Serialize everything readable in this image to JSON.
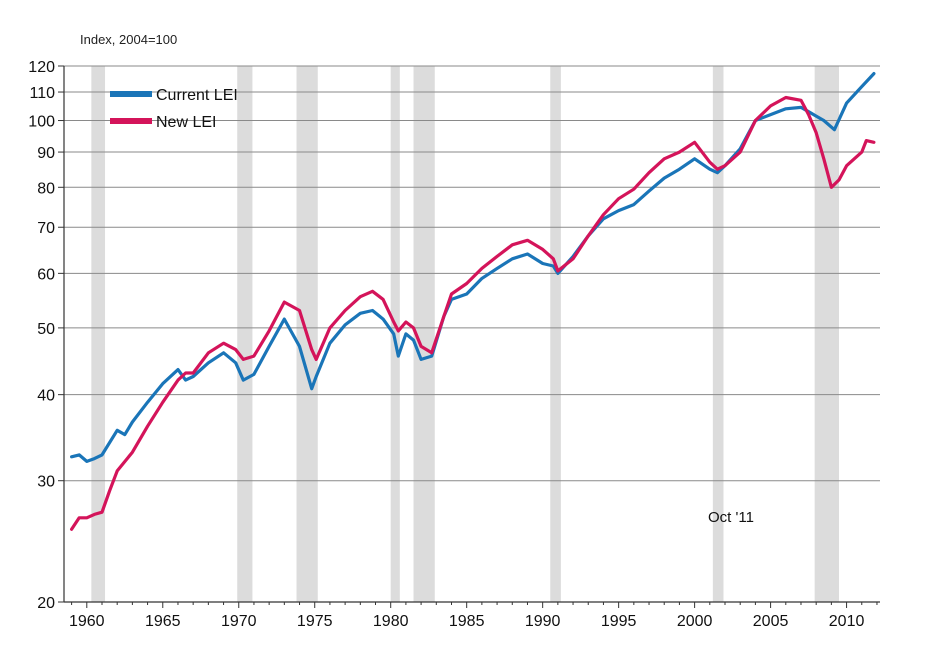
{
  "chart_data": {
    "type": "line",
    "ylabel": "Index, 2004=100",
    "y_scale": "log",
    "ylim": [
      20,
      120
    ],
    "xlim": [
      1958.5,
      2012.2
    ],
    "y_ticks": [
      20,
      30,
      40,
      50,
      60,
      70,
      80,
      90,
      100,
      110,
      120
    ],
    "x_ticks": [
      1960,
      1965,
      1970,
      1975,
      1980,
      1985,
      1990,
      1995,
      2000,
      2005,
      2010
    ],
    "grid": "horizontal",
    "legend_position": "top-left",
    "annotation": "Oct '11",
    "recessions": [
      [
        1960.3,
        1961.2
      ],
      [
        1969.9,
        1970.9
      ],
      [
        1973.8,
        1975.2
      ],
      [
        1980.0,
        1980.6
      ],
      [
        1981.5,
        1982.9
      ],
      [
        1990.5,
        1991.2
      ],
      [
        2001.2,
        2001.9
      ],
      [
        2007.9,
        2009.5
      ]
    ],
    "series": [
      {
        "name": "Current LEI",
        "color": "#1a75b8",
        "x": [
          1959.0,
          1959.5,
          1960.0,
          1960.5,
          1961.0,
          1962.0,
          1962.5,
          1963.0,
          1964.0,
          1965.0,
          1966.0,
          1966.5,
          1967.0,
          1968.0,
          1969.0,
          1969.8,
          1970.3,
          1971.0,
          1972.0,
          1973.0,
          1974.0,
          1974.8,
          1975.1,
          1976.0,
          1977.0,
          1978.0,
          1978.8,
          1979.5,
          1980.2,
          1980.5,
          1981.0,
          1981.5,
          1982.0,
          1982.7,
          1983.5,
          1984.0,
          1985.0,
          1986.0,
          1987.0,
          1988.0,
          1989.0,
          1990.0,
          1990.7,
          1991.0,
          1992.0,
          1993.0,
          1994.0,
          1995.0,
          1996.0,
          1997.0,
          1998.0,
          1999.0,
          2000.0,
          2001.0,
          2001.5,
          2002.0,
          2003.0,
          2004.0,
          2005.0,
          2006.0,
          2007.0,
          2007.5,
          2008.0,
          2008.5,
          2009.2,
          2010.0,
          2011.0,
          2011.8
        ],
        "values": [
          32.5,
          32.7,
          32.0,
          32.3,
          32.7,
          35.5,
          35.0,
          36.5,
          39.0,
          41.5,
          43.5,
          42.0,
          42.5,
          44.5,
          46.0,
          44.5,
          42.0,
          42.8,
          47.0,
          51.5,
          47.0,
          40.8,
          42.5,
          47.5,
          50.5,
          52.5,
          53.0,
          51.5,
          49.0,
          45.5,
          49.0,
          48.0,
          45.0,
          45.5,
          52.0,
          55.0,
          56.0,
          59.0,
          61.0,
          63.0,
          64.0,
          62.0,
          61.5,
          60.0,
          63.5,
          68.0,
          72.0,
          74.0,
          75.5,
          79.0,
          82.5,
          85.0,
          88.0,
          85.0,
          84.0,
          86.0,
          91.0,
          100.0,
          102.0,
          104.0,
          104.5,
          103.0,
          101.5,
          100.0,
          97.0,
          106.0,
          112.0,
          117.0
        ]
      },
      {
        "name": "New LEI",
        "color": "#d4145a",
        "x": [
          1959.0,
          1959.5,
          1960.0,
          1960.5,
          1961.0,
          1961.5,
          1962.0,
          1963.0,
          1964.0,
          1965.0,
          1966.0,
          1966.5,
          1967.0,
          1968.0,
          1969.0,
          1969.8,
          1970.3,
          1971.0,
          1972.0,
          1973.0,
          1974.0,
          1974.8,
          1975.1,
          1976.0,
          1977.0,
          1978.0,
          1978.8,
          1979.5,
          1980.2,
          1980.5,
          1981.0,
          1981.5,
          1982.0,
          1982.7,
          1983.5,
          1984.0,
          1985.0,
          1986.0,
          1987.0,
          1988.0,
          1989.0,
          1990.0,
          1990.7,
          1991.0,
          1992.0,
          1993.0,
          1994.0,
          1995.0,
          1996.0,
          1997.0,
          1998.0,
          1999.0,
          2000.0,
          2001.0,
          2001.5,
          2002.0,
          2003.0,
          2004.0,
          2005.0,
          2006.0,
          2007.0,
          2007.5,
          2008.0,
          2008.5,
          2009.0,
          2009.5,
          2010.0,
          2011.0,
          2011.3,
          2011.8
        ],
        "values": [
          25.5,
          26.5,
          26.5,
          26.8,
          27.0,
          29.0,
          31.0,
          33.0,
          36.0,
          39.0,
          42.0,
          43.0,
          43.0,
          46.0,
          47.5,
          46.5,
          45.0,
          45.5,
          49.5,
          54.5,
          53.0,
          46.5,
          45.0,
          50.0,
          53.0,
          55.5,
          56.5,
          55.0,
          51.0,
          49.5,
          51.0,
          50.0,
          47.0,
          46.0,
          52.0,
          56.0,
          58.0,
          61.0,
          63.5,
          66.0,
          67.0,
          65.0,
          63.0,
          60.5,
          63.0,
          68.0,
          73.0,
          77.0,
          79.5,
          84.0,
          88.0,
          90.0,
          93.0,
          87.0,
          85.0,
          86.0,
          90.0,
          100.0,
          105.0,
          108.0,
          107.0,
          102.0,
          96.0,
          88.0,
          80.0,
          82.0,
          86.0,
          90.0,
          93.5,
          93.0
        ]
      }
    ]
  }
}
